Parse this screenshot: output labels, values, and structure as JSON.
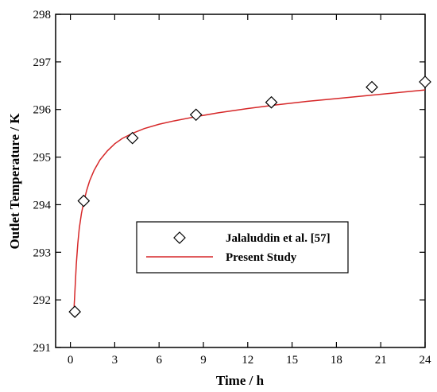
{
  "chart_data": {
    "type": "scatter",
    "xlabel": "Time / h",
    "ylabel": "Outlet Temperature / K",
    "xlim": [
      -1,
      24
    ],
    "ylim": [
      291,
      298
    ],
    "xticks": [
      0,
      3,
      6,
      9,
      12,
      15,
      18,
      21,
      24
    ],
    "yticks": [
      291,
      292,
      293,
      294,
      295,
      296,
      297,
      298
    ],
    "x_tick_labels": [
      "0",
      "3",
      "6",
      "9",
      "12",
      "15",
      "18",
      "21",
      "24"
    ],
    "y_tick_labels": [
      "291",
      "292",
      "293",
      "294",
      "295",
      "296",
      "297",
      "298"
    ],
    "grid": false,
    "legend_position": "center-right",
    "series": [
      {
        "name": "Jalaluddin et al. [57]",
        "kind": "scatter",
        "marker": "diamond",
        "color": "#000000",
        "x": [
          0.3,
          0.9,
          4.2,
          8.5,
          13.6,
          20.4,
          24.0
        ],
        "y": [
          291.75,
          294.08,
          295.4,
          295.89,
          296.15,
          296.47,
          296.58
        ]
      },
      {
        "name": "Present Study",
        "kind": "line",
        "color": "#d62728",
        "x": [
          0.25,
          0.3,
          0.4,
          0.5,
          0.6,
          0.75,
          0.9,
          1.1,
          1.3,
          1.6,
          2.0,
          2.5,
          3.0,
          3.5,
          4.2,
          5.0,
          6.0,
          7.0,
          8.5,
          10.0,
          12.0,
          14.0,
          16.0,
          18.0,
          20.0,
          22.0,
          24.0
        ],
        "y": [
          291.85,
          292.15,
          292.75,
          293.18,
          293.5,
          293.82,
          294.05,
          294.3,
          294.5,
          294.72,
          294.94,
          295.13,
          295.28,
          295.39,
          295.5,
          295.6,
          295.69,
          295.76,
          295.85,
          295.93,
          296.02,
          296.1,
          296.17,
          296.23,
          296.29,
          296.35,
          296.41
        ]
      }
    ]
  }
}
